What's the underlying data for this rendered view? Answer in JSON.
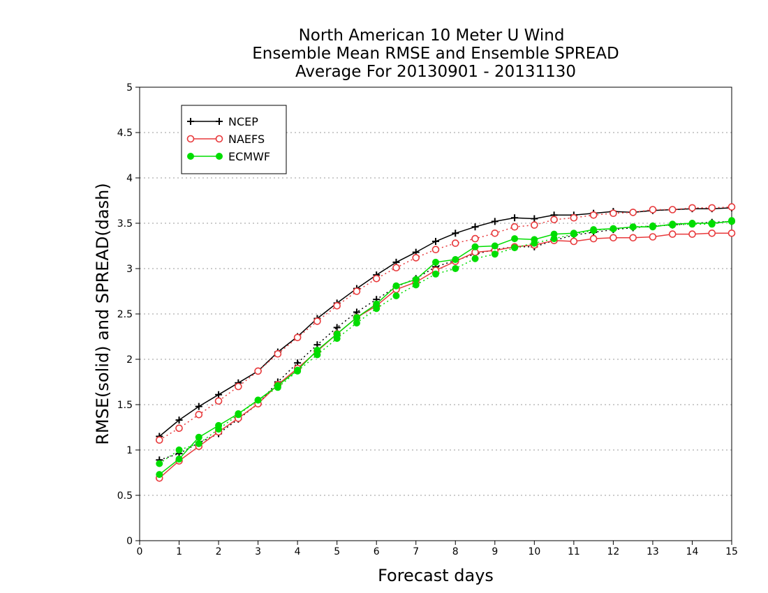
{
  "chart_data": {
    "type": "line",
    "title_lines": [
      "North American 10 Meter U Wind",
      "Ensemble Mean RMSE and Ensemble SPREAD",
      "Average For 20130901 - 20131130"
    ],
    "xlabel": "Forecast days",
    "ylabel": "RMSE(solid) and SPREAD(dash)",
    "xlim": [
      0,
      15
    ],
    "ylim": [
      0,
      5
    ],
    "x_ticks": [
      "0",
      "1",
      "2",
      "3",
      "4",
      "5",
      "6",
      "7",
      "8",
      "9",
      "10",
      "11",
      "12",
      "13",
      "14",
      "15"
    ],
    "y_ticks": [
      "0",
      "0.5",
      "1",
      "1.5",
      "2",
      "2.5",
      "3",
      "3.5",
      "4",
      "4.5",
      "5"
    ],
    "grid": "horizontal dotted",
    "legend_position": "top-left",
    "x": [
      0.5,
      1,
      1.5,
      2,
      2.5,
      3,
      3.5,
      4,
      4.5,
      5,
      5.5,
      6,
      6.5,
      7,
      7.5,
      8,
      8.5,
      9,
      9.5,
      10,
      10.5,
      11,
      11.5,
      12,
      12.5,
      13,
      13.5,
      14,
      14.5,
      15
    ],
    "series": [
      {
        "name": "NCEP",
        "color": "#000000",
        "marker": "plus",
        "rmse": [
          1.15,
          1.33,
          1.48,
          1.61,
          1.74,
          1.87,
          2.08,
          2.25,
          2.45,
          2.62,
          2.78,
          2.93,
          3.07,
          3.18,
          3.3,
          3.39,
          3.46,
          3.52,
          3.56,
          3.55,
          3.59,
          3.59,
          3.61,
          3.63,
          3.62,
          3.64,
          3.65,
          3.66,
          3.66,
          3.67
        ],
        "spread": [
          0.89,
          0.96,
          1.08,
          1.18,
          1.34,
          1.51,
          1.75,
          1.96,
          2.16,
          2.35,
          2.52,
          2.66,
          2.8,
          2.89,
          3.02,
          3.09,
          3.16,
          3.21,
          3.24,
          3.24,
          3.31,
          3.37,
          3.4,
          3.43,
          3.45,
          3.47,
          3.48,
          3.5,
          3.51,
          3.52
        ]
      },
      {
        "name": "NAEFS",
        "color": "#e8393b",
        "marker": "open-circle",
        "rmse": [
          0.69,
          0.88,
          1.04,
          1.2,
          1.35,
          1.51,
          1.72,
          1.9,
          2.09,
          2.28,
          2.46,
          2.59,
          2.77,
          2.85,
          2.98,
          3.08,
          3.18,
          3.2,
          3.24,
          3.26,
          3.31,
          3.3,
          3.33,
          3.34,
          3.34,
          3.35,
          3.38,
          3.38,
          3.39,
          3.39
        ],
        "spread": [
          1.11,
          1.24,
          1.39,
          1.54,
          1.7,
          1.87,
          2.06,
          2.24,
          2.42,
          2.59,
          2.75,
          2.89,
          3.01,
          3.12,
          3.21,
          3.28,
          3.33,
          3.39,
          3.46,
          3.48,
          3.54,
          3.56,
          3.59,
          3.61,
          3.62,
          3.65,
          3.65,
          3.67,
          3.67,
          3.68
        ]
      },
      {
        "name": "ECMWF",
        "color": "#00dd00",
        "marker": "filled-circle",
        "rmse": [
          0.73,
          0.9,
          1.14,
          1.27,
          1.4,
          1.55,
          1.71,
          1.88,
          2.1,
          2.28,
          2.46,
          2.61,
          2.81,
          2.88,
          3.07,
          3.1,
          3.24,
          3.25,
          3.33,
          3.32,
          3.38,
          3.39,
          3.43,
          3.44,
          3.46,
          3.46,
          3.49,
          3.5,
          3.5,
          3.52
        ],
        "spread": [
          0.85,
          1.0,
          1.07,
          1.23,
          1.39,
          1.55,
          1.69,
          1.87,
          2.05,
          2.23,
          2.4,
          2.56,
          2.7,
          2.82,
          2.94,
          3.0,
          3.11,
          3.16,
          3.23,
          3.28,
          3.33,
          3.38,
          3.42,
          3.44,
          3.46,
          3.47,
          3.48,
          3.49,
          3.49,
          3.53
        ]
      }
    ]
  }
}
